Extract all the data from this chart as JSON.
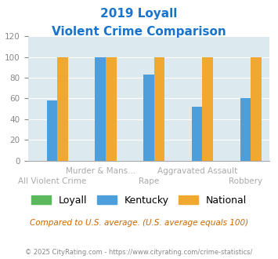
{
  "title_line1": "2019 Loyall",
  "title_line2": "Violent Crime Comparison",
  "categories": [
    "All Violent Crime",
    "Murder & Mans...",
    "Rape",
    "Aggravated Assault",
    "Robbery"
  ],
  "series": {
    "Loyall": [
      0,
      0,
      0,
      0,
      0
    ],
    "Kentucky": [
      58,
      100,
      83,
      52,
      60
    ],
    "National": [
      100,
      100,
      100,
      100,
      100
    ]
  },
  "colors": {
    "Loyall": "#5cb85c",
    "Kentucky": "#4d9fdb",
    "National": "#f0a830"
  },
  "ylim": [
    0,
    120
  ],
  "yticks": [
    0,
    20,
    40,
    60,
    80,
    100,
    120
  ],
  "plot_bg": "#dce9ef",
  "title_color": "#1874cd",
  "footer_text": "Compared to U.S. average. (U.S. average equals 100)",
  "copyright_text": "© 2025 CityRating.com - https://www.cityrating.com/crime-statistics/",
  "title_fontsize": 11,
  "subtitle_fontsize": 11,
  "bar_width": 0.22,
  "row1_indices": [
    1,
    3
  ],
  "row2_indices": [
    0,
    2,
    4
  ],
  "row1_labels": [
    "Murder & Mans...",
    "Aggravated Assault"
  ],
  "row2_labels": [
    "All Violent Crime",
    "Rape",
    "Robbery"
  ]
}
